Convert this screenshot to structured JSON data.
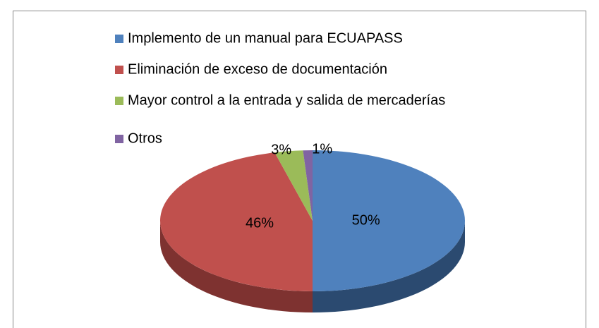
{
  "chart_data": {
    "type": "pie",
    "categories": [
      "Implemento de un manual para ECUAPASS",
      "Eliminación de exceso de documentación",
      "Mayor control a la entrada y salida de mercaderías",
      "Otros"
    ],
    "values": [
      50,
      46,
      3,
      1
    ],
    "value_labels": [
      "50%",
      "46%",
      "3%",
      "1%"
    ],
    "colors": [
      "#4f81bd",
      "#c0504d",
      "#9bbb59",
      "#8064a2"
    ],
    "side_colors": [
      "#2b4a70",
      "#7e3230",
      "#5f7a33",
      "#4f3b68"
    ]
  }
}
